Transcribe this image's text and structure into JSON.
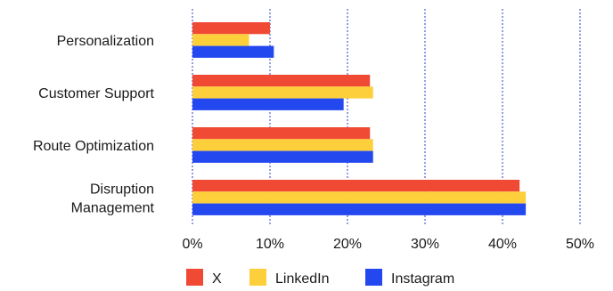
{
  "chart_data": {
    "type": "bar",
    "orientation": "horizontal",
    "title": "",
    "xlabel": "",
    "ylabel": "",
    "categories": [
      [
        "Personalization"
      ],
      [
        "Customer Support"
      ],
      [
        "Route Optimization"
      ],
      [
        "Disruption",
        "Management"
      ]
    ],
    "series": [
      {
        "name": "X",
        "color": "#f04a35",
        "values": [
          10,
          22.9,
          22.9,
          42.2
        ]
      },
      {
        "name": "LinkedIn",
        "color": "#fdd03b",
        "values": [
          7.3,
          23.3,
          23.3,
          43.0
        ]
      },
      {
        "name": "Instagram",
        "color": "#2448f0",
        "values": [
          10.5,
          19.5,
          23.3,
          43.0
        ]
      }
    ],
    "xlim": [
      0,
      50
    ],
    "xticks": [
      {
        "value": 0,
        "label": "0%"
      },
      {
        "value": 10,
        "label": "10%"
      },
      {
        "value": 20,
        "label": "20%"
      },
      {
        "value": 30,
        "label": "30%"
      },
      {
        "value": 40,
        "label": "40%"
      },
      {
        "value": 50,
        "label": "50%"
      }
    ],
    "grid": "vertical dashed",
    "grid_color": "#2e3ec9",
    "legend_position": "bottom"
  }
}
